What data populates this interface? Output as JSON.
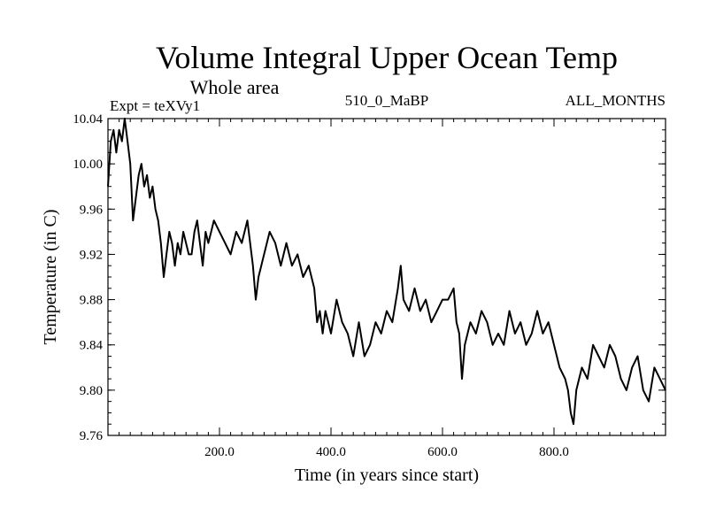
{
  "chart_data": {
    "type": "line",
    "title": "Volume Integral Upper Ocean Temp",
    "subtitle": "Whole area",
    "experiment_label": "Expt = teXVy1",
    "run_label": "510_0_MaBP",
    "months_label": "ALL_MONTHS",
    "xlabel": "Time (in years since start)",
    "ylabel": "Temperature (in C)",
    "xlim": [
      0,
      1000
    ],
    "ylim": [
      9.76,
      10.04
    ],
    "x_ticks": [
      200,
      400,
      600,
      800
    ],
    "x_tick_labels": [
      "200.0",
      "400.0",
      "600.0",
      "800.0"
    ],
    "y_ticks": [
      9.76,
      9.8,
      9.84,
      9.88,
      9.92,
      9.96,
      10.0,
      10.04
    ],
    "y_tick_labels": [
      "9.76",
      "9.80",
      "9.84",
      "9.88",
      "9.92",
      "9.96",
      "10.00",
      "10.04"
    ],
    "line_color": "#000000",
    "series": [
      {
        "name": "Volume Integral Upper Ocean Temp",
        "x": [
          0,
          5,
          10,
          15,
          20,
          25,
          30,
          35,
          40,
          45,
          50,
          55,
          60,
          65,
          70,
          75,
          80,
          85,
          90,
          95,
          100,
          105,
          110,
          115,
          120,
          125,
          130,
          135,
          140,
          145,
          150,
          155,
          160,
          165,
          170,
          175,
          180,
          185,
          190,
          200,
          210,
          220,
          230,
          240,
          250,
          260,
          265,
          270,
          280,
          290,
          300,
          310,
          320,
          330,
          340,
          350,
          360,
          370,
          375,
          380,
          385,
          390,
          395,
          400,
          410,
          420,
          430,
          440,
          450,
          460,
          470,
          480,
          490,
          500,
          510,
          520,
          525,
          530,
          540,
          550,
          560,
          570,
          580,
          590,
          600,
          610,
          620,
          625,
          630,
          635,
          640,
          650,
          660,
          670,
          680,
          690,
          700,
          710,
          720,
          730,
          740,
          750,
          760,
          770,
          780,
          790,
          800,
          810,
          820,
          825,
          830,
          835,
          840,
          850,
          860,
          870,
          880,
          890,
          900,
          910,
          920,
          930,
          940,
          950,
          960,
          970,
          980,
          990,
          1000
        ],
        "values": [
          9.98,
          10.02,
          10.03,
          10.01,
          10.03,
          10.02,
          10.04,
          10.02,
          10.0,
          9.95,
          9.97,
          9.99,
          10.0,
          9.98,
          9.99,
          9.97,
          9.98,
          9.96,
          9.95,
          9.93,
          9.9,
          9.92,
          9.94,
          9.93,
          9.91,
          9.93,
          9.92,
          9.94,
          9.93,
          9.92,
          9.92,
          9.94,
          9.95,
          9.93,
          9.91,
          9.94,
          9.93,
          9.94,
          9.95,
          9.94,
          9.93,
          9.92,
          9.94,
          9.93,
          9.95,
          9.91,
          9.88,
          9.9,
          9.92,
          9.94,
          9.93,
          9.91,
          9.93,
          9.91,
          9.92,
          9.9,
          9.91,
          9.89,
          9.86,
          9.87,
          9.85,
          9.87,
          9.86,
          9.85,
          9.88,
          9.86,
          9.85,
          9.83,
          9.86,
          9.83,
          9.84,
          9.86,
          9.85,
          9.87,
          9.86,
          9.89,
          9.91,
          9.88,
          9.87,
          9.89,
          9.87,
          9.88,
          9.86,
          9.87,
          9.88,
          9.88,
          9.89,
          9.86,
          9.85,
          9.81,
          9.84,
          9.86,
          9.85,
          9.87,
          9.86,
          9.84,
          9.85,
          9.84,
          9.87,
          9.85,
          9.86,
          9.84,
          9.85,
          9.87,
          9.85,
          9.86,
          9.84,
          9.82,
          9.81,
          9.8,
          9.78,
          9.77,
          9.8,
          9.82,
          9.81,
          9.84,
          9.83,
          9.82,
          9.84,
          9.83,
          9.81,
          9.8,
          9.82,
          9.83,
          9.8,
          9.79,
          9.82,
          9.81,
          9.8
        ]
      }
    ]
  }
}
